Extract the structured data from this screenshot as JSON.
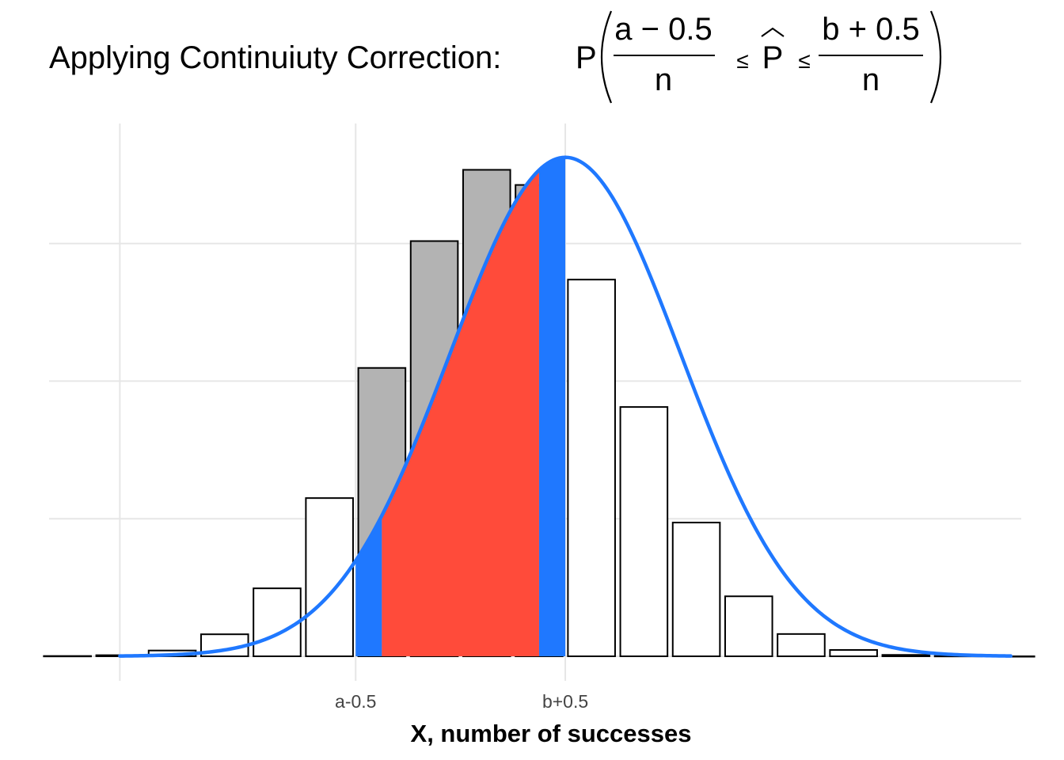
{
  "chart_data": {
    "type": "bar",
    "title": {
      "prefix": "Applying Continuiuty Correction:",
      "prob_symbol": "P",
      "lower_numerator": "a − 0.5",
      "upper_numerator": "b + 0.5",
      "denominator": "n",
      "le_symbol": "≤",
      "estimator": "P"
    },
    "xlabel": "X, number of successes",
    "ylabel": "",
    "x_tick_labels": [
      {
        "x": 9.5,
        "label": "a-0.5"
      },
      {
        "x": 13.5,
        "label": "b+0.5"
      }
    ],
    "x_gridlines": [
      5.0,
      9.5,
      13.5
    ],
    "y_gridlines": [
      0,
      0.05,
      0.1,
      0.15
    ],
    "xlim": [
      3.65,
      22.2
    ],
    "ylim": [
      0,
      0.185
    ],
    "grid": true,
    "bars": {
      "x": [
        4,
        5,
        6,
        7,
        8,
        9,
        10,
        11,
        12,
        13,
        14,
        15,
        16,
        17,
        18,
        19,
        20,
        21,
        22
      ],
      "values": [
        0.0001,
        0.0004,
        0.0021,
        0.008,
        0.0247,
        0.0575,
        0.1048,
        0.1509,
        0.1768,
        0.1713,
        0.1369,
        0.0906,
        0.0486,
        0.0218,
        0.0081,
        0.0023,
        0.0005,
        0.0001,
        0.0
      ],
      "highlighted_x": [
        10,
        11,
        12,
        13
      ]
    },
    "normal_curve": {
      "mean": 13.5,
      "sd": 2.2,
      "range": [
        5.0,
        22.0
      ]
    },
    "shaded_regions": [
      {
        "from": 9.5,
        "to": 10.0,
        "role": "correction"
      },
      {
        "from": 10.0,
        "to": 13.0,
        "role": "uncorrected"
      },
      {
        "from": 13.0,
        "to": 13.5,
        "role": "correction"
      }
    ],
    "colors": {
      "highlight_bar": "#b3b3b3",
      "bar_fill": "#ffffff",
      "bar_outline": "#000000",
      "curve": "#1f78ff",
      "correction_area": "#1f78ff",
      "core_area": "#ff4b3a",
      "grid": "#e6e6e6"
    }
  }
}
